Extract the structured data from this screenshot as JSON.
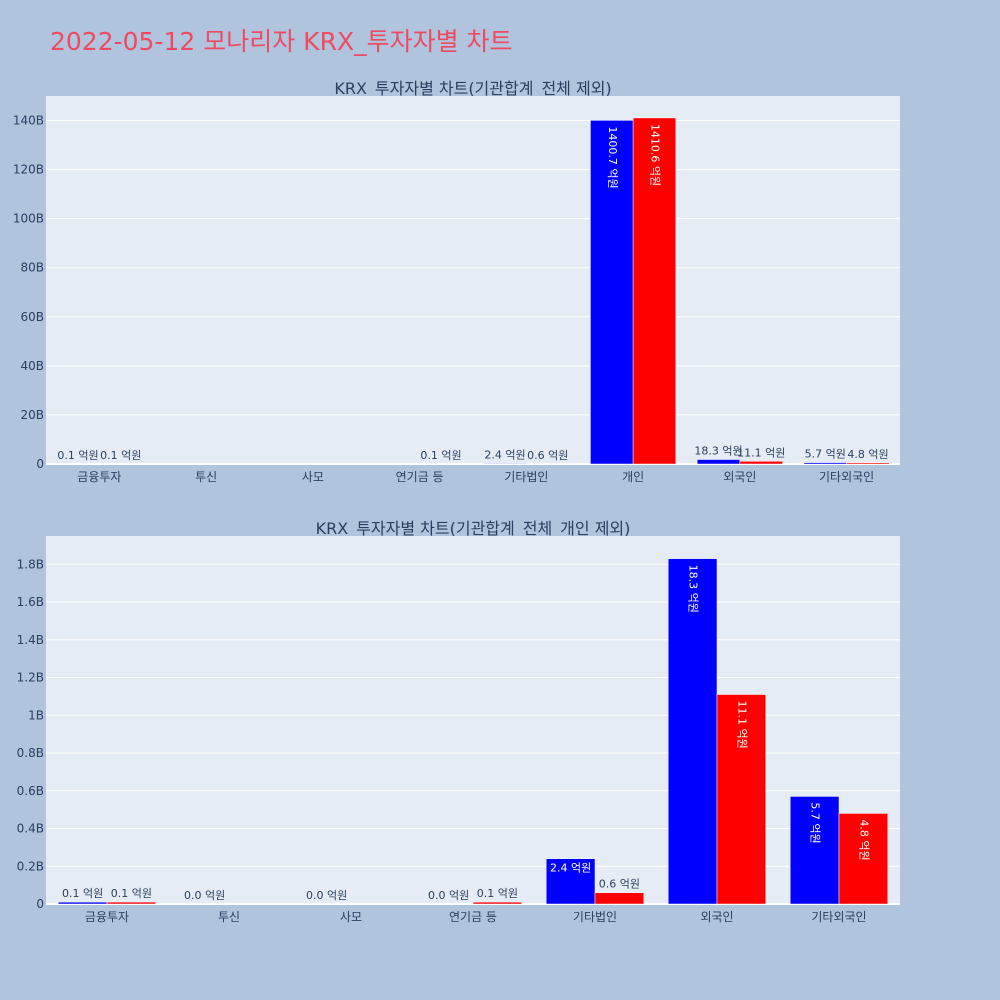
{
  "page": {
    "title": "2022-05-12 모나리자 KRX_투자자별 차트"
  },
  "colors": {
    "background": "#b0c4de",
    "plot_bg": "#e5ecf6",
    "series_a": "#0000ff",
    "series_b": "#ff0000",
    "title": "#ef4a60",
    "text": "#2a3f5f"
  },
  "chart_data": [
    {
      "type": "bar",
      "title": "KRX_투자자별 차트(기관합계_전체 제외)",
      "categories": [
        "금융투자",
        "투신",
        "사모",
        "연기금 등",
        "기타법인",
        "개인",
        "외국인",
        "기타외국인"
      ],
      "ylim": [
        0,
        150
      ],
      "yticks": [
        0,
        20,
        40,
        60,
        80,
        100,
        120,
        140
      ],
      "ytick_labels": [
        "0",
        "20B",
        "40B",
        "60B",
        "80B",
        "100B",
        "120B",
        "140B"
      ],
      "grid": true,
      "series": [
        {
          "color": "#0000ff",
          "values": [
            0.01,
            0,
            0,
            0,
            0.24,
            140.07,
            1.83,
            0.57
          ],
          "labels": [
            "0.1 억원",
            "",
            "",
            "",
            "2.4 억원",
            "1400.7 억원",
            "18.3 억원",
            "5.7 억원"
          ]
        },
        {
          "color": "#ff0000",
          "values": [
            0.01,
            0,
            0,
            0.01,
            0.06,
            141.06,
            1.11,
            0.48
          ],
          "labels": [
            "0.1 억원",
            "",
            "",
            "0.1 억원",
            "0.6 억원",
            "1410.6 억원",
            "11.1 억원",
            "4.8 억원"
          ]
        }
      ]
    },
    {
      "type": "bar",
      "title": "KRX_투자자별 차트(기관합계_전체_개인 제외)",
      "categories": [
        "금융투자",
        "투신",
        "사모",
        "연기금 등",
        "기타법인",
        "외국인",
        "기타외국인"
      ],
      "ylim": [
        0,
        1.95
      ],
      "yticks": [
        0,
        0.2,
        0.4,
        0.6,
        0.8,
        1.0,
        1.2,
        1.4,
        1.6,
        1.8
      ],
      "ytick_labels": [
        "0",
        "0.2B",
        "0.4B",
        "0.6B",
        "0.8B",
        "1B",
        "1.2B",
        "1.4B",
        "1.6B",
        "1.8B"
      ],
      "grid": true,
      "series": [
        {
          "color": "#0000ff",
          "values": [
            0.01,
            0.0,
            0.0,
            0.0,
            0.24,
            1.83,
            0.57
          ],
          "labels": [
            "0.1 억원",
            "0.0 억원",
            "0.0 억원",
            "0.0 억원",
            "2.4 억원",
            "18.3 억원",
            "5.7 억원"
          ]
        },
        {
          "color": "#ff0000",
          "values": [
            0.01,
            0,
            0,
            0.01,
            0.06,
            1.11,
            0.48
          ],
          "labels": [
            "0.1 억원",
            "",
            "",
            "0.1 억원",
            "0.6 억원",
            "11.1 억원",
            "4.8 억원"
          ]
        }
      ]
    }
  ]
}
